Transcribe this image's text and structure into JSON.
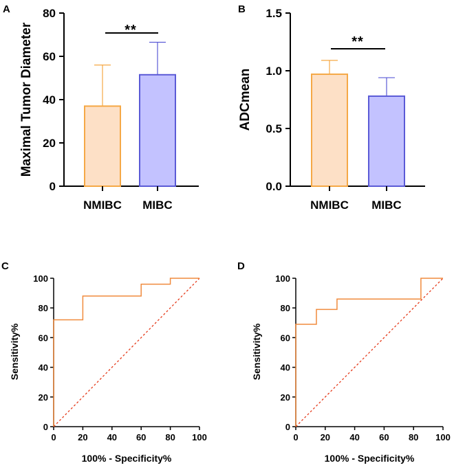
{
  "chart_data": [
    {
      "panel": "A",
      "type": "bar",
      "categories": [
        "NMIBC",
        "MIBC"
      ],
      "values": [
        37,
        51.5
      ],
      "errors": [
        19,
        15
      ],
      "ylabel": "Maximal Tumor Diameter",
      "ylim": [
        0,
        80
      ],
      "yticks": [
        0,
        20,
        40,
        60,
        80
      ],
      "significance": "**",
      "colors": {
        "fills": [
          "#fde0c6",
          "#c3c2ff"
        ],
        "strokes": [
          "#f5a845",
          "#5a5ad6"
        ]
      }
    },
    {
      "panel": "B",
      "type": "bar",
      "categories": [
        "NMIBC",
        "MIBC"
      ],
      "values": [
        0.97,
        0.78
      ],
      "errors": [
        0.12,
        0.16
      ],
      "ylabel": "ADCmean",
      "ylim": [
        0,
        1.5
      ],
      "yticks": [
        "0.0",
        "0.5",
        "1.0",
        "1.5"
      ],
      "significance": "**",
      "colors": {
        "fills": [
          "#fde0c6",
          "#c3c2ff"
        ],
        "strokes": [
          "#f5a845",
          "#5a5ad6"
        ]
      }
    },
    {
      "panel": "C",
      "type": "line",
      "title": "",
      "xlabel": "100% - Specificity%",
      "ylabel": "Sensitivity%",
      "xlim": [
        0,
        100
      ],
      "ylim": [
        0,
        100
      ],
      "ticks": [
        0,
        20,
        40,
        60,
        80,
        100
      ],
      "roc": {
        "x": [
          0,
          0,
          20,
          20,
          60,
          60,
          80,
          80,
          100
        ],
        "y": [
          0,
          72,
          72,
          88,
          88,
          96,
          96,
          100,
          100
        ]
      },
      "reference_line": {
        "x": [
          0,
          100
        ],
        "y": [
          0,
          100
        ]
      },
      "colors": {
        "roc": "#f08a3c",
        "reference": "#e53a1a"
      }
    },
    {
      "panel": "D",
      "type": "line",
      "title": "",
      "xlabel": "100% - Specificity%",
      "ylabel": "Sensitivity%",
      "xlim": [
        0,
        100
      ],
      "ylim": [
        0,
        100
      ],
      "ticks": [
        0,
        20,
        40,
        60,
        80,
        100
      ],
      "roc": {
        "x": [
          0,
          0,
          14,
          14,
          28,
          28,
          85,
          85,
          100
        ],
        "y": [
          0,
          69,
          69,
          79,
          79,
          86,
          86,
          100,
          100
        ]
      },
      "reference_line": {
        "x": [
          0,
          100
        ],
        "y": [
          0,
          100
        ]
      },
      "colors": {
        "roc": "#f08a3c",
        "reference": "#e53a1a"
      }
    }
  ]
}
